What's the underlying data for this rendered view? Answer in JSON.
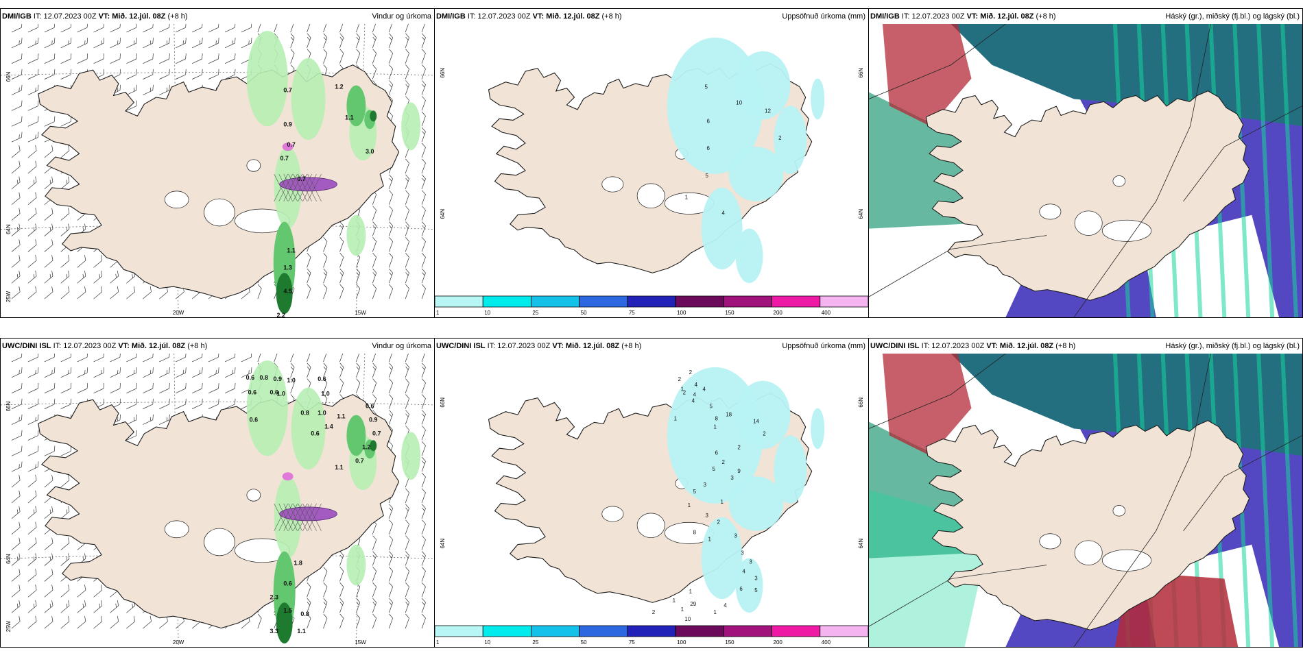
{
  "panels": [
    {
      "id": "p1",
      "model": "DMI/IGB",
      "it_label": "IT: 12.07.2023 00Z",
      "vt_label": "VT: Mið. 12.júl. 08Z",
      "step": "(+8 h)",
      "title": "Vindur og úrkoma",
      "kind": "wind",
      "lat_labels": [
        "66N",
        "64N",
        "25W"
      ],
      "lon_labels": [
        "20W",
        "15W"
      ],
      "values": [
        {
          "t": "0.7"
        },
        {
          "t": "1.2"
        },
        {
          "t": "0.9"
        },
        {
          "t": "1.1"
        },
        {
          "t": "0.7"
        },
        {
          "t": "0.7"
        },
        {
          "t": "0.7"
        },
        {
          "t": "3.0"
        },
        {
          "t": "1.1"
        },
        {
          "t": "1.3"
        },
        {
          "t": "4.5"
        },
        {
          "t": "2.2"
        }
      ]
    },
    {
      "id": "p2",
      "model": "DMI/IGB",
      "it_label": "IT: 12.07.2023 00Z",
      "vt_label": "VT: Mið. 12.júl. 08Z",
      "step": "(+8 h)",
      "title": "Uppsöfnuð úrkoma (mm)",
      "kind": "accum",
      "lat_labels": [
        "66N",
        "64N"
      ],
      "values": [
        {
          "t": "5"
        },
        {
          "t": "10"
        },
        {
          "t": "12"
        },
        {
          "t": "2"
        },
        {
          "t": "6"
        },
        {
          "t": "6"
        },
        {
          "t": "5"
        },
        {
          "t": "1"
        },
        {
          "t": "4"
        }
      ]
    },
    {
      "id": "p3",
      "model": "DMI/IGB",
      "it_label": "IT: 12.07.2023 00Z",
      "vt_label": "VT: Mið. 12.júl. 08Z",
      "step": "(+8 h)",
      "title": "Háský (gr.), miðský (fj.bl.) og lágský (bl.)",
      "kind": "cloud"
    },
    {
      "id": "p4",
      "model": "UWC/DINI ISL",
      "it_label": "IT: 12.07.2023 00Z",
      "vt_label": "VT: Mið. 12.júl. 08Z",
      "step": "(+8 h)",
      "title": "Vindur og úrkoma",
      "kind": "wind",
      "lat_labels": [
        "66N",
        "64N",
        "25W"
      ],
      "lon_labels": [
        "20W",
        "15W"
      ],
      "values": [
        {
          "t": "0.6"
        },
        {
          "t": "0.8"
        },
        {
          "t": "0.9"
        },
        {
          "t": "1.0"
        },
        {
          "t": "0.6"
        },
        {
          "t": "0.6"
        },
        {
          "t": "0.6"
        },
        {
          "t": "1.0"
        },
        {
          "t": "0.6"
        },
        {
          "t": "1.0"
        },
        {
          "t": "0.8"
        },
        {
          "t": "1.1"
        },
        {
          "t": "0.6"
        },
        {
          "t": "1.0"
        },
        {
          "t": "1.4"
        },
        {
          "t": "0.6"
        },
        {
          "t": "0.9"
        },
        {
          "t": "0.7"
        },
        {
          "t": "1.2"
        },
        {
          "t": "0.7"
        },
        {
          "t": "1.1"
        },
        {
          "t": "1.8"
        },
        {
          "t": "0.6"
        },
        {
          "t": "2.3"
        },
        {
          "t": "1.5"
        },
        {
          "t": "3.3"
        },
        {
          "t": "1.1"
        },
        {
          "t": "0.8"
        }
      ]
    },
    {
      "id": "p5",
      "model": "UWC/DINI ISL",
      "it_label": "IT: 12.07.2023 00Z",
      "vt_label": "VT: Mið. 12.júl. 08Z",
      "step": "(+8 h)",
      "title": "Uppsöfnuð úrkoma (mm)",
      "kind": "accum",
      "lat_labels": [
        "66N",
        "64N"
      ],
      "values": [
        {
          "t": "2"
        },
        {
          "t": "2"
        },
        {
          "t": "4"
        },
        {
          "t": "1"
        },
        {
          "t": "4"
        },
        {
          "t": "2"
        },
        {
          "t": "4"
        },
        {
          "t": "4"
        },
        {
          "t": "1"
        },
        {
          "t": "5"
        },
        {
          "t": "8"
        },
        {
          "t": "1"
        },
        {
          "t": "18"
        },
        {
          "t": "14"
        },
        {
          "t": "2"
        },
        {
          "t": "6"
        },
        {
          "t": "2"
        },
        {
          "t": "9"
        },
        {
          "t": "5"
        },
        {
          "t": "3"
        },
        {
          "t": "3"
        },
        {
          "t": "1"
        },
        {
          "t": "5"
        },
        {
          "t": "1"
        },
        {
          "t": "3"
        },
        {
          "t": "8"
        },
        {
          "t": "2"
        },
        {
          "t": "1"
        },
        {
          "t": "3"
        },
        {
          "t": "3"
        },
        {
          "t": "3"
        },
        {
          "t": "3"
        },
        {
          "t": "5"
        },
        {
          "t": "6"
        },
        {
          "t": "4"
        },
        {
          "t": "29"
        },
        {
          "t": "4"
        },
        {
          "t": "1"
        },
        {
          "t": "1"
        },
        {
          "t": "10"
        },
        {
          "t": "2"
        },
        {
          "t": "1"
        },
        {
          "t": "1"
        },
        {
          "t": "2"
        }
      ]
    },
    {
      "id": "p6",
      "model": "UWC/DINI ISL",
      "it_label": "IT: 12.07.2023 00Z",
      "vt_label": "VT: Mið. 12.júl. 08Z",
      "step": "(+8 h)",
      "title": "Háský (gr.), miðský (fj.bl.) og lágský (bl.)",
      "kind": "cloud"
    }
  ],
  "colorbar": {
    "ticks": [
      "1",
      "10",
      "25",
      "50",
      "75",
      "100",
      "150",
      "200",
      "400"
    ],
    "colors": [
      "#b8f6f6",
      "#00ecec",
      "#14c1e8",
      "#2e68e0",
      "#2222b8",
      "#6b0a5b",
      "#a0127c",
      "#ee1aa6",
      "#f3b4f0"
    ]
  },
  "colors": {
    "land": "#f1e3d6",
    "coast": "#1b1b1b",
    "precip_light": "#b6eeb3",
    "precip_mid": "#63c76f",
    "precip_dark": "#1e7a2f",
    "snow": "#a35bc2",
    "accum_cyan": "#b7f2f4",
    "cloud_high": "#236f80",
    "cloud_mid": "#5448c2",
    "cloud_low": "#66b8a0",
    "cloud_green": "#16d69b",
    "cloud_red": "#b32a37"
  }
}
